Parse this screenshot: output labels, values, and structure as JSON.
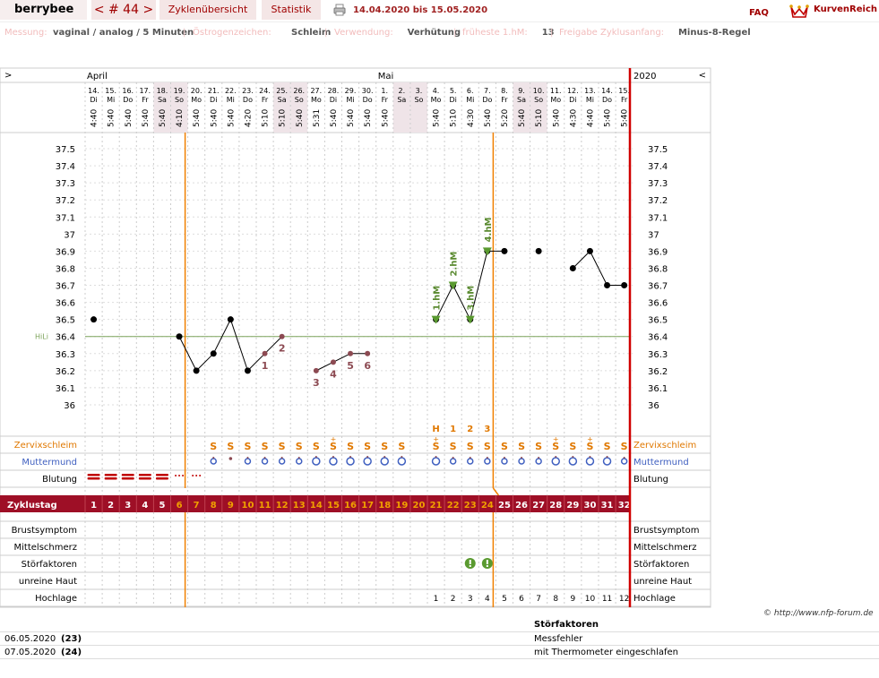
{
  "nav": {
    "user": "berrybee",
    "cycle": "< # 44 >",
    "tab_overview": "Zyklenübersicht",
    "tab_stats": "Statistik",
    "date_range": "14.04.2020 bis 15.05.2020",
    "faq": "FAQ",
    "brand": "KurvenReich"
  },
  "info": [
    {
      "label": "Messung:",
      "value": "vaginal / analog / 5 Minuten"
    },
    {
      "label": "Östrogenzeichen:",
      "value": "Schleim"
    },
    {
      "label": "Verwendung:",
      "value": "Verhütung"
    },
    {
      "label": "früheste 1.hM:",
      "value": "13"
    },
    {
      "label": "Freigabe Zyklusanfang:",
      "value": "Minus-8-Regel"
    }
  ],
  "chart_data": {
    "type": "line",
    "title": "",
    "nav_left": ">",
    "nav_right": "<",
    "year": "2020",
    "months": [
      {
        "label": "April",
        "day_index": 0
      },
      {
        "label": "Mai",
        "day_index": 17
      }
    ],
    "dates": [
      "14.",
      "15.",
      "16.",
      "17.",
      "18.",
      "19.",
      "20.",
      "21.",
      "22.",
      "23.",
      "24.",
      "25.",
      "26.",
      "27.",
      "28.",
      "29.",
      "30.",
      "1.",
      "2.",
      "3.",
      "4.",
      "5.",
      "6.",
      "7.",
      "8.",
      "9.",
      "10.",
      "11.",
      "12.",
      "13.",
      "14.",
      "15."
    ],
    "weekdays": [
      "Di",
      "Mi",
      "Do",
      "Fr",
      "Sa",
      "So",
      "Mo",
      "Di",
      "Mi",
      "Do",
      "Fr",
      "Sa",
      "So",
      "Mo",
      "Di",
      "Mi",
      "Do",
      "Fr",
      "Sa",
      "So",
      "Mo",
      "Di",
      "Mi",
      "Do",
      "Fr",
      "Sa",
      "So",
      "Mo",
      "Di",
      "Mi",
      "Do",
      "Fr"
    ],
    "weekend": [
      false,
      false,
      false,
      false,
      true,
      true,
      false,
      false,
      false,
      false,
      false,
      true,
      true,
      false,
      false,
      false,
      false,
      false,
      true,
      true,
      false,
      false,
      false,
      false,
      false,
      true,
      true,
      false,
      false,
      false,
      false,
      false
    ],
    "times": [
      "4:40",
      "5:40",
      "5:40",
      "5:40",
      "5:40",
      "4:10",
      "5:40",
      "5:40",
      "5:40",
      "4:20",
      "5:10",
      "5:10",
      "5:40",
      "5:31",
      "5:40",
      "5:40",
      "5:40",
      "5:40",
      "",
      "",
      "5:40",
      "5:10",
      "4:30",
      "5:40",
      "5:20",
      "5:40",
      "5:10",
      "5:40",
      "4:30",
      "4:40",
      "5:40",
      "5:40"
    ],
    "y_ticks": [
      "37.5",
      "37.4",
      "37.3",
      "37.2",
      "37.1",
      "37",
      "36.9",
      "36.8",
      "36.7",
      "36.6",
      "36.5",
      "36.4",
      "36.3",
      "36.2",
      "36.1",
      "36"
    ],
    "ylim": [
      36.0,
      37.5
    ],
    "hili_label": "HiLi",
    "hili_value": 36.4,
    "temps": [
      36.5,
      null,
      null,
      null,
      null,
      36.4,
      36.2,
      36.3,
      36.5,
      36.2,
      36.3,
      36.4,
      null,
      36.2,
      36.25,
      36.3,
      36.3,
      null,
      null,
      null,
      36.5,
      36.7,
      36.5,
      36.9,
      36.9,
      null,
      36.9,
      null,
      36.8,
      36.9,
      36.7,
      36.7
    ],
    "excluded": [
      false,
      false,
      false,
      false,
      false,
      false,
      false,
      false,
      false,
      false,
      true,
      true,
      false,
      true,
      true,
      true,
      true,
      false,
      false,
      false,
      false,
      false,
      false,
      false,
      false,
      false,
      false,
      false,
      false,
      false,
      false,
      false
    ],
    "counting_labels": [
      {
        "day_index": 10,
        "text": "1"
      },
      {
        "day_index": 11,
        "text": "2"
      },
      {
        "day_index": 13,
        "text": "3"
      },
      {
        "day_index": 14,
        "text": "4"
      },
      {
        "day_index": 15,
        "text": "5"
      },
      {
        "day_index": 16,
        "text": "6"
      }
    ],
    "high_labels": [
      {
        "day_index": 20,
        "text": "1.hM"
      },
      {
        "day_index": 21,
        "text": "2.hM"
      },
      {
        "day_index": 22,
        "text": "3.hM"
      },
      {
        "day_index": 23,
        "text": "4.hM"
      }
    ],
    "evaluation_lines_day_index": [
      5,
      23
    ],
    "peak_row": [
      {
        "day_index": 20,
        "text": "H"
      },
      {
        "day_index": 21,
        "text": "1"
      },
      {
        "day_index": 22,
        "text": "2"
      },
      {
        "day_index": 23,
        "text": "3"
      }
    ],
    "cervix_mucus": [
      "",
      "",
      "",
      "",
      "",
      "",
      "",
      "S",
      "S",
      "S",
      "S",
      "S",
      "S",
      "S",
      "S+",
      "S",
      "S",
      "S",
      "S",
      "",
      "S+",
      "S",
      "S",
      "S",
      "S",
      "S",
      "S",
      "S+",
      "S",
      "S+",
      "S",
      "S"
    ],
    "cervix": [
      "",
      "",
      "",
      "",
      "",
      "",
      "",
      "o",
      "d",
      "o",
      "o",
      "o",
      "o",
      "O",
      "O",
      "O",
      "O",
      "O",
      "O",
      "",
      "O",
      "o",
      "o",
      "o",
      "o",
      "o",
      "o",
      "O",
      "O",
      "O",
      "O",
      "o"
    ],
    "bleeding": [
      "heavy",
      "heavy",
      "heavy",
      "heavy",
      "heavy",
      "light",
      "light",
      "",
      "",
      "",
      "",
      "",
      "",
      "",
      "",
      "",
      "",
      "",
      "",
      "",
      "",
      "",
      "",
      "",
      "",
      "",
      "",
      "",
      "",
      "",
      "",
      ""
    ],
    "cycle_days": [
      "1",
      "2",
      "3",
      "4",
      "5",
      "6",
      "7",
      "8",
      "9",
      "10",
      "11",
      "12",
      "13",
      "14",
      "15",
      "16",
      "17",
      "18",
      "19",
      "20",
      "21",
      "22",
      "23",
      "24",
      "25",
      "26",
      "27",
      "28",
      "29",
      "30",
      "31",
      "32"
    ],
    "cycle_day_infertile": [
      true,
      true,
      true,
      true,
      true,
      false,
      false,
      false,
      false,
      false,
      false,
      false,
      false,
      false,
      false,
      false,
      false,
      false,
      false,
      false,
      false,
      false,
      false,
      false,
      true,
      true,
      true,
      true,
      true,
      true,
      true,
      true
    ],
    "disturbances_day_index": [
      22,
      23
    ],
    "hochlage": [
      "",
      "",
      "",
      "",
      "",
      "",
      "",
      "",
      "",
      "",
      "",
      "",
      "",
      "",
      "",
      "",
      "",
      "",
      "",
      "",
      "1",
      "2",
      "3",
      "4",
      "5",
      "6",
      "7",
      "8",
      "9",
      "10",
      "11",
      "12"
    ],
    "row_labels": {
      "mucus": "Zervixschleim",
      "cervix": "Muttermund",
      "bleeding": "Blutung",
      "cycleday": "Zyklustag",
      "breast": "Brustsymptom",
      "midpain": "Mittelschmerz",
      "disturb": "Störfaktoren",
      "skin": "unreine Haut",
      "hochlage": "Hochlage"
    }
  },
  "footer": {
    "copyright": "© http://www.nfp-forum.de",
    "notes_heading": "Störfaktoren",
    "notes": [
      {
        "date": "06.05.2020",
        "day": "(23)",
        "text": "Messfehler"
      },
      {
        "date": "07.05.2020",
        "day": "(24)",
        "text": "mit Thermometer eingeschlafen"
      }
    ]
  }
}
